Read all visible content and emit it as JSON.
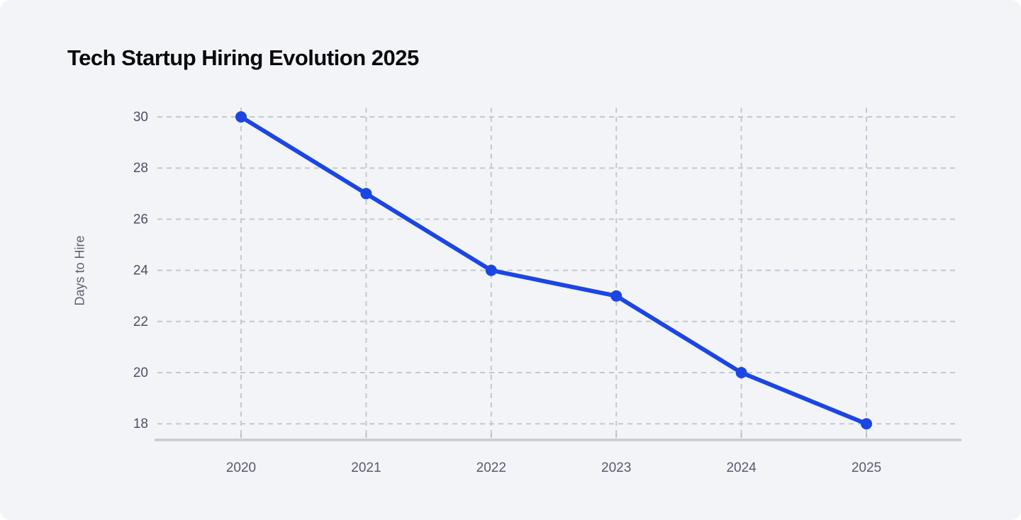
{
  "page": {
    "title": "Tech Startup Hiring Evolution 2025"
  },
  "chart_data": {
    "type": "line",
    "title": "Tech Startup Hiring Evolution 2025",
    "categories": [
      "2020",
      "2021",
      "2022",
      "2023",
      "2024",
      "2025"
    ],
    "series": [
      {
        "name": "Days to Hire",
        "values": [
          30,
          27,
          24,
          23,
          20,
          18
        ]
      }
    ],
    "xlabel": "",
    "ylabel": "Days to Hire",
    "yticks": [
      30,
      28,
      26,
      24,
      22,
      20,
      18
    ],
    "ylim": [
      17.4,
      30.4
    ],
    "grid": true,
    "grid_style": "dashed",
    "legend": false,
    "marker": "circle",
    "colors": {
      "line": "#1c46e3",
      "marker": "#1c46e3",
      "grid": "#c2c8d4",
      "axis_line": "#c6cad3",
      "tick_mark": "#b9bfcc",
      "y_tick_label": "#4b5063",
      "x_tick_label": "#565b6e",
      "axis_title": "#5a5f72",
      "title": "#0a0a0c",
      "background": "#f3f4f8"
    }
  }
}
